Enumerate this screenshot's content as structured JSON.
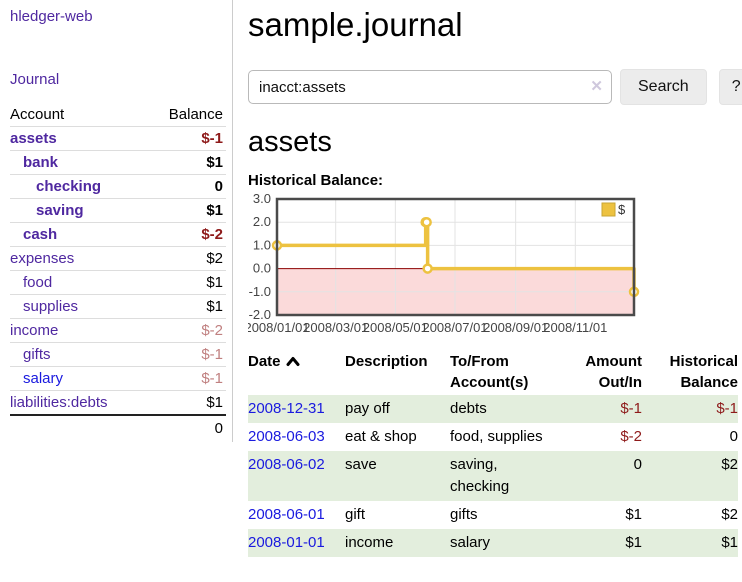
{
  "app": {
    "title": "hledger-web",
    "nav_journal": "Journal"
  },
  "header": {
    "title": "sample.journal"
  },
  "search": {
    "value": "inacct:assets",
    "clear_icon": "✕",
    "button_label": "Search",
    "help_label": "?",
    "sort_icon": "chevron-up"
  },
  "main": {
    "heading": "assets",
    "chart_label": "Historical Balance:"
  },
  "sidebar": {
    "header": {
      "account": "Account",
      "balance": "Balance"
    },
    "rows": [
      {
        "name": "assets",
        "balance": "$-1"
      },
      {
        "name": "bank",
        "balance": "$1"
      },
      {
        "name": "checking",
        "balance": "0"
      },
      {
        "name": "saving",
        "balance": "$1"
      },
      {
        "name": "cash",
        "balance": "$-2"
      },
      {
        "name": "expenses",
        "balance": "$2"
      },
      {
        "name": "food",
        "balance": "$1"
      },
      {
        "name": "supplies",
        "balance": "$1"
      },
      {
        "name": "income",
        "balance": "$-2"
      },
      {
        "name": "gifts",
        "balance": "$-1"
      },
      {
        "name": "salary",
        "balance": "$-1"
      },
      {
        "name": "liabilities:debts",
        "balance": "$1"
      }
    ],
    "total": "0"
  },
  "chart_data": {
    "type": "line",
    "title": "Historical Balance",
    "step": true,
    "series": [
      {
        "name": "$",
        "color": "#edc240",
        "points": [
          [
            "2008-01-01",
            1
          ],
          [
            "2008-06-01",
            2
          ],
          [
            "2008-06-02",
            2
          ],
          [
            "2008-06-03",
            0
          ],
          [
            "2008-12-31",
            -1
          ]
        ]
      }
    ],
    "xlim": [
      "2008-01-01",
      "2008-12-31"
    ],
    "ylim": [
      -2,
      3
    ],
    "x_ticks": [
      "2008/01/01",
      "2008/03/01",
      "2008/05/01",
      "2008/07/01",
      "2008/09/01",
      "2008/11/01"
    ],
    "y_ticks": [
      "3.0",
      "2.0",
      "1.0",
      "0.0",
      "-1.0",
      "-2.0"
    ],
    "legend": {
      "label": "$",
      "position": "top-right"
    },
    "grid": true,
    "colors": {
      "negative_region": "#fbdada",
      "zero_line": "#8b0000",
      "grid_line": "#e3e3e3",
      "border": "#4a4a4a"
    }
  },
  "table": {
    "headers": {
      "date": "Date",
      "description": "Description",
      "tofrom_line1": "To/From",
      "tofrom_line2": "Account(s)",
      "amount_line1": "Amount",
      "amount_line2": "Out/In",
      "hist_line1": "Historical",
      "hist_line2": "Balance"
    },
    "rows": [
      {
        "date": "2008-12-31",
        "description": "pay off",
        "accounts": "debts",
        "amount": "$-1",
        "balance": "$-1"
      },
      {
        "date": "2008-06-03",
        "description": "eat & shop",
        "accounts": "food, supplies",
        "amount": "$-2",
        "balance": "0"
      },
      {
        "date": "2008-06-02",
        "description": "save",
        "accounts": "saving, checking",
        "amount": "0",
        "balance": "$2"
      },
      {
        "date": "2008-06-01",
        "description": "gift",
        "accounts": "gifts",
        "amount": "$1",
        "balance": "$2"
      },
      {
        "date": "2008-01-01",
        "description": "income",
        "accounts": "salary",
        "amount": "$1",
        "balance": "$1"
      }
    ]
  }
}
